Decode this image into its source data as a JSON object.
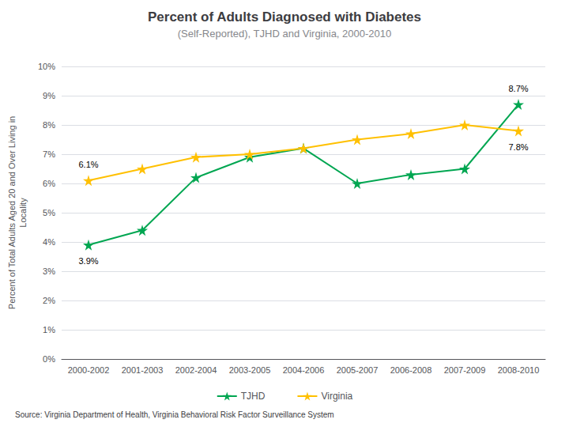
{
  "chart_data": {
    "type": "line",
    "title": "Percent of Adults Diagnosed with Diabetes",
    "subtitle": "(Self-Reported), TJHD and Virginia, 2000-2010",
    "ylabel": "Percent of Total Adults Aged 20 and Over Living in\nLocality",
    "source": "Source: Virginia Department of Health, Virginia Behavioral Risk Factor Surveillance System",
    "categories": [
      "2000-2002",
      "2001-2003",
      "2002-2004",
      "2003-2005",
      "2004-2006",
      "2005-2007",
      "2006-2008",
      "2007-2009",
      "2008-2010"
    ],
    "series": [
      {
        "name": "TJHD",
        "color": "#00A651",
        "values": [
          3.9,
          4.4,
          6.2,
          6.9,
          7.2,
          6.0,
          6.3,
          6.5,
          8.7
        ]
      },
      {
        "name": "Virginia",
        "color": "#FFC000",
        "values": [
          6.1,
          6.5,
          6.9,
          7.0,
          7.2,
          7.5,
          7.7,
          8.0,
          7.8
        ]
      }
    ],
    "annotations": [
      {
        "text": "3.9%",
        "series": "TJHD",
        "x": "2000-2002",
        "y": 3.9
      },
      {
        "text": "6.1%",
        "series": "Virginia",
        "x": "2000-2002",
        "y": 6.1
      },
      {
        "text": "8.7%",
        "series": "TJHD",
        "x": "2008-2010",
        "y": 8.7
      },
      {
        "text": "7.8%",
        "series": "Virginia",
        "x": "2008-2010",
        "y": 7.8
      }
    ],
    "ylim": [
      0,
      10
    ],
    "yticks": [
      {
        "value": 0,
        "label": "0%"
      },
      {
        "value": 1,
        "label": "1%"
      },
      {
        "value": 2,
        "label": "2%"
      },
      {
        "value": 3,
        "label": "3%"
      },
      {
        "value": 4,
        "label": "4%"
      },
      {
        "value": 5,
        "label": "5%"
      },
      {
        "value": 6,
        "label": "6%"
      },
      {
        "value": 7,
        "label": "7%"
      },
      {
        "value": 8,
        "label": "8%"
      },
      {
        "value": 9,
        "label": "9%"
      },
      {
        "value": 10,
        "label": "10%"
      }
    ],
    "grid": true,
    "legend": "bottom",
    "marker": "star"
  }
}
